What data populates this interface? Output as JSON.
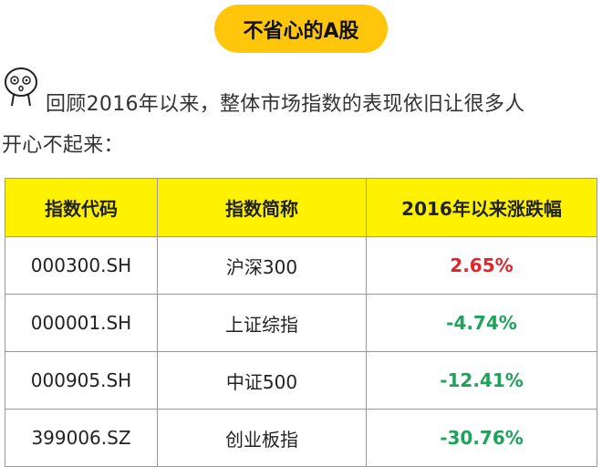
{
  "header": {
    "title": "不省心的A股"
  },
  "paragraph": {
    "lines": [
      "回顾2016年以来，整体市场指数的表现依旧让很多人",
      "开心不起来："
    ]
  },
  "table": {
    "columns": [
      "指数代码",
      "指数简称",
      "2016年以来涨跌幅"
    ],
    "rows": [
      [
        "000300.SH",
        "沪深300",
        "2.65%"
      ],
      [
        "000001.SH",
        "上证综指",
        "-4.74%"
      ],
      [
        "000905.SH",
        "中证500",
        "-12.41%"
      ],
      [
        "399006.SZ",
        "创业板指",
        "-30.76%"
      ]
    ]
  }
}
